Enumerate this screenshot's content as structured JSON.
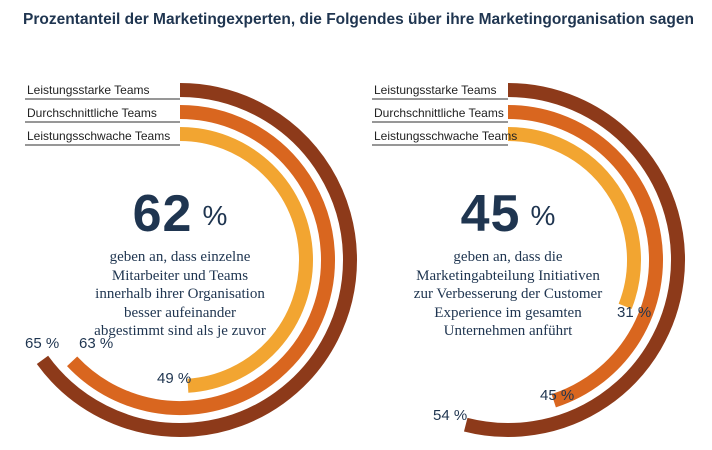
{
  "title": "Prozentanteil der Marketingexperten, die Folgendes über ihre Marketingorganisation sagen",
  "colors": {
    "high": "#8d3a1a",
    "avg": "#d9661f",
    "low": "#f2a531",
    "text": "#1f3550",
    "line": "#2f2f2f"
  },
  "chart_data": [
    {
      "type": "radial-bar",
      "headline": "62",
      "percent_sign": "%",
      "description": [
        "geben an, dass einzelne",
        "Mitarbeiter und Teams",
        "innerhalb ihrer Organisation",
        "besser aufeinander",
        "abgestimmt sind als je zuvor"
      ],
      "series": [
        {
          "name": "Leistungsstarke Teams",
          "value": 65,
          "label": "65 %"
        },
        {
          "name": "Durchschnittliche Teams",
          "value": 63,
          "label": "63 %"
        },
        {
          "name": "Leistungsschwache Teams",
          "value": 49,
          "label": "49 %"
        }
      ]
    },
    {
      "type": "radial-bar",
      "headline": "45",
      "percent_sign": "%",
      "description": [
        "geben an, dass die",
        "Marketingabteilung Initiativen",
        "zur Verbesserung der Customer",
        "Experience im gesamten",
        "Unternehmen anführt"
      ],
      "series": [
        {
          "name": "Leistungsstarke Teams",
          "value": 54,
          "label": "54 %"
        },
        {
          "name": "Durchschnittliche Teams",
          "value": 45,
          "label": "45 %"
        },
        {
          "name": "Leistungsschwache Teams",
          "value": 31,
          "label": "31 %"
        }
      ]
    }
  ]
}
